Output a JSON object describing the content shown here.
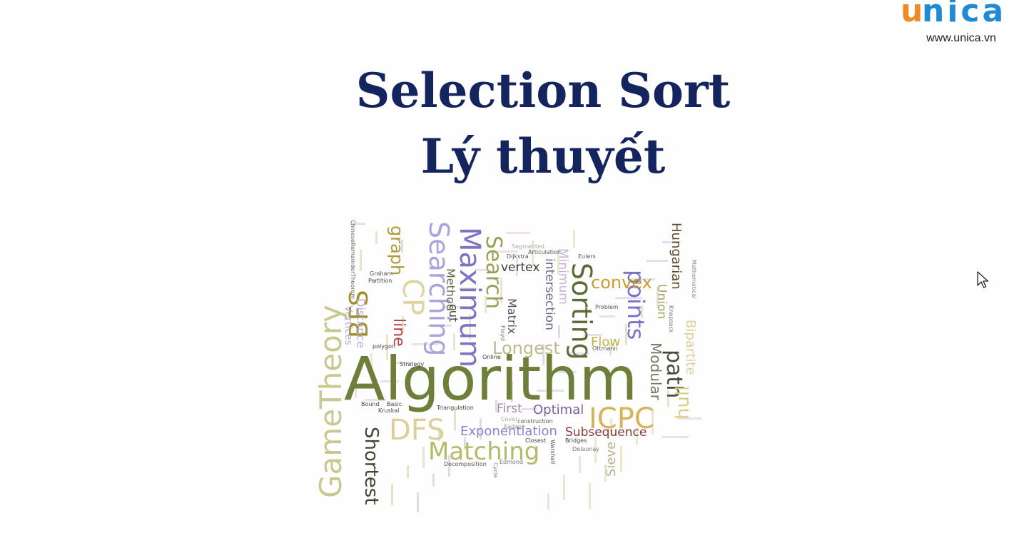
{
  "header": {
    "logo_text": "unica",
    "logo_url": "www.unica.vn",
    "colors": {
      "logo_u": "#f08a24",
      "logo_rest": "#1f8bd4",
      "title": "#13245e"
    }
  },
  "slide": {
    "title_line1": "Selection Sort",
    "title_line2": "Lý thuyết"
  },
  "word_cloud": {
    "words": [
      "Algorithm",
      "GameTheory",
      "Matching",
      "DFS",
      "ICPC",
      "Sorting",
      "Searching",
      "Maximum",
      "Search",
      "graph",
      "BFS",
      "CP",
      "line",
      "points",
      "convex",
      "path",
      "hull",
      "Longest",
      "Shortest",
      "Exponentiation",
      "Subsequence",
      "Optimal",
      "First",
      "Flow",
      "Modular",
      "Hungarian",
      "Bipartite",
      "Union",
      "Sieve",
      "Minimum",
      "intersection",
      "vertex",
      "Matrix",
      "Method",
      "cut",
      "Distance",
      "Vertices",
      "Decomposition",
      "construction",
      "Triangulation",
      "Kruskal",
      "Bound",
      "Basic",
      "Closest",
      "Bridges",
      "Online",
      "Strategy",
      "polygon",
      "Partition",
      "Graham",
      "Dijkstra",
      "Articulation",
      "Eulers",
      "Problem",
      "Ottmann",
      "Delaunay",
      "Warshall",
      "Edmond",
      "Cycle",
      "Floyd",
      "Knapsack",
      "Mathematical",
      "Segmented",
      "Cover",
      "Kadane",
      "ChineseRemainderTheorem"
    ]
  },
  "cursor": {
    "icon": "mouse-pointer-icon"
  }
}
